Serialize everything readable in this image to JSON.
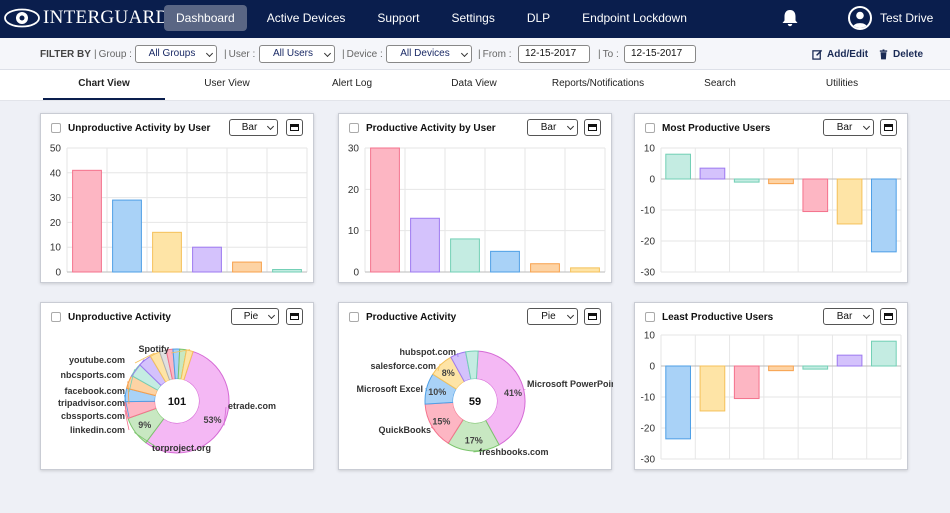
{
  "app": {
    "logo_text": "INTERGUARD"
  },
  "nav": {
    "items": [
      "Dashboard",
      "Active Devices",
      "Support",
      "Settings",
      "DLP",
      "Endpoint Lockdown"
    ],
    "active_index": 0
  },
  "user": {
    "name": "Test Drive"
  },
  "filter": {
    "label": "FILTER BY",
    "group_label": "Group :",
    "group_value": "All Groups",
    "user_label": "User :",
    "user_value": "All Users",
    "device_label": "Device :",
    "device_value": "All Devices",
    "from_label": "From :",
    "from_value": "12-15-2017",
    "to_label": "To :",
    "to_value": "12-15-2017",
    "add_edit_label": "Add/Edit",
    "delete_label": "Delete"
  },
  "tabs": [
    "Chart View",
    "User View",
    "Alert Log",
    "Data View",
    "Reports/Notifications",
    "Search",
    "Utilities"
  ],
  "colors": {
    "nav_bg": "#0a1e4d",
    "nav_active": "#5a6684",
    "series": [
      {
        "fill": "#fdb6c3",
        "stroke": "#f4728c"
      },
      {
        "fill": "#a9d2f7",
        "stroke": "#4e9fe6"
      },
      {
        "fill": "#fee4a6",
        "stroke": "#f5c15a"
      },
      {
        "fill": "#d4c2fc",
        "stroke": "#9d79f0"
      },
      {
        "fill": "#fdd3a4",
        "stroke": "#f7a04b"
      },
      {
        "fill": "#c4ece2",
        "stroke": "#72cfb5"
      },
      {
        "fill": "#c8e8c2",
        "stroke": "#7bc46c"
      },
      {
        "fill": "#f4b8f4",
        "stroke": "#d56ad5"
      }
    ]
  },
  "chart_data": [
    {
      "id": "c1",
      "type": "bar",
      "title": "Unproductive Activity by User",
      "select": "Bar",
      "values": [
        41,
        29,
        16,
        10,
        4,
        1
      ],
      "color_index": [
        0,
        1,
        2,
        3,
        4,
        5
      ],
      "ylim": [
        0,
        50
      ],
      "yticks": [
        0,
        10,
        20,
        30,
        40,
        50
      ]
    },
    {
      "id": "c2",
      "type": "bar",
      "title": "Productive Activity by User",
      "select": "Bar",
      "values": [
        30,
        13,
        8,
        5,
        2,
        1
      ],
      "color_index": [
        0,
        3,
        5,
        1,
        4,
        2
      ],
      "ylim": [
        0,
        30
      ],
      "yticks": [
        0,
        10,
        20,
        30
      ]
    },
    {
      "id": "c3",
      "type": "bar",
      "title": "Most Productive Users",
      "select": "Bar",
      "values": [
        8,
        3.5,
        -1,
        -1.5,
        -10.5,
        -14.5,
        -23.5
      ],
      "color_index": [
        5,
        3,
        5,
        4,
        0,
        2,
        1
      ],
      "ylim": [
        -30,
        10
      ],
      "yticks": [
        -30,
        -20,
        -10,
        0,
        10
      ]
    },
    {
      "id": "c4",
      "type": "pie",
      "title": "Unproductive Activity",
      "select": "Pie",
      "center_label": "101",
      "slices": [
        {
          "label": "etrade.com",
          "pct": 53,
          "color": "#f4b8f4",
          "stroke": "#d56ad5",
          "show_pct": true
        },
        {
          "label": "torproject.org",
          "pct": 9,
          "color": "#c8e8c2",
          "stroke": "#7bc46c",
          "show_pct": true
        },
        {
          "label": "linkedin.com",
          "pct": 5,
          "color": "#fdb6c3",
          "stroke": "#f4728c",
          "show_pct": false
        },
        {
          "label": "cbssports.com",
          "pct": 4,
          "color": "#a9d2f7",
          "stroke": "#4e9fe6",
          "show_pct": false
        },
        {
          "label": "tripadvisor.com",
          "pct": 4,
          "color": "#fdd3a4",
          "stroke": "#f7a04b",
          "show_pct": false
        },
        {
          "label": "facebook.com",
          "pct": 4,
          "color": "#c4ece2",
          "stroke": "#72cfb5",
          "show_pct": false
        },
        {
          "label": "nbcsports.com",
          "pct": 4,
          "color": "#d4c2fc",
          "stroke": "#9d79f0",
          "show_pct": false
        },
        {
          "label": "youtube.com",
          "pct": 3,
          "color": "#fee4a6",
          "stroke": "#f5c15a",
          "show_pct": false
        },
        {
          "label": "",
          "pct": 2,
          "color": "#e0e0e0",
          "stroke": "#b0b0b0",
          "show_pct": false
        },
        {
          "label": "",
          "pct": 2,
          "color": "#fdb6c3",
          "stroke": "#f4728c",
          "show_pct": false
        },
        {
          "label": "",
          "pct": 2,
          "color": "#a9d2f7",
          "stroke": "#4e9fe6",
          "show_pct": false
        },
        {
          "label": "",
          "pct": 2,
          "color": "#c8e8c2",
          "stroke": "#7bc46c",
          "show_pct": false
        },
        {
          "label": "Spotify",
          "pct": 2,
          "color": "#fee4a6",
          "stroke": "#f5c15a",
          "show_pct": false
        }
      ]
    },
    {
      "id": "c5",
      "type": "pie",
      "title": "Productive Activity",
      "select": "Pie",
      "center_label": "59",
      "slices": [
        {
          "label": "Microsoft PowerPoin",
          "pct": 41,
          "color": "#f4b8f4",
          "stroke": "#d56ad5",
          "show_pct": true
        },
        {
          "label": "freshbooks.com",
          "pct": 17,
          "color": "#c8e8c2",
          "stroke": "#7bc46c",
          "show_pct": true
        },
        {
          "label": "QuickBooks",
          "pct": 15,
          "color": "#fdb6c3",
          "stroke": "#f4728c",
          "show_pct": true
        },
        {
          "label": "Microsoft Excel",
          "pct": 10,
          "color": "#a9d2f7",
          "stroke": "#4e9fe6",
          "show_pct": true
        },
        {
          "label": "salesforce.com",
          "pct": 8,
          "color": "#fee4a6",
          "stroke": "#f5c15a",
          "show_pct": true
        },
        {
          "label": "hubspot.com",
          "pct": 5,
          "color": "#d4c2fc",
          "stroke": "#9d79f0",
          "show_pct": false
        },
        {
          "label": "",
          "pct": 4,
          "color": "#c4ece2",
          "stroke": "#72cfb5",
          "show_pct": false
        }
      ]
    },
    {
      "id": "c6",
      "type": "bar",
      "title": "Least Productive Users",
      "select": "Bar",
      "values": [
        -23.5,
        -14.5,
        -10.5,
        -1.5,
        -1,
        3.5,
        8
      ],
      "color_index": [
        1,
        2,
        0,
        4,
        5,
        3,
        5
      ],
      "ylim": [
        -30,
        10
      ],
      "yticks": [
        -30,
        -20,
        -10,
        0,
        10
      ]
    }
  ]
}
